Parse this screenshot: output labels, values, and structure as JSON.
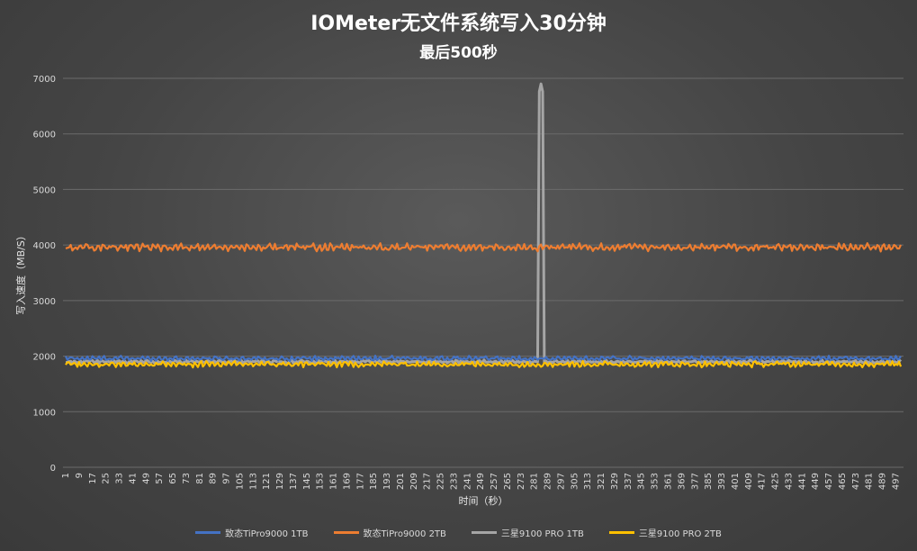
{
  "chart_data": {
    "type": "line",
    "title": "IOMeter无文件系统写入30分钟",
    "subtitle": "最后500秒",
    "xlabel": "时间（秒）",
    "ylabel": "写入速度（MB/S）",
    "ylim": [
      0,
      7000
    ],
    "yticks": [
      0,
      1000,
      2000,
      3000,
      4000,
      5000,
      6000,
      7000
    ],
    "x_start": 1,
    "x_end": 500,
    "x_tick_step": 8,
    "grid": true,
    "legend_position": "bottom",
    "series": [
      {
        "name": "致态TiPro9000 1TB",
        "color": "#4472c4",
        "mean": 1960,
        "amplitude": 45
      },
      {
        "name": "致态TiPro9000 2TB",
        "color": "#ed7d31",
        "mean": 3960,
        "amplitude": 70
      },
      {
        "name": "三星9100 PRO 1TB",
        "color": "#a5a5a5",
        "mean": 1900,
        "amplitude": 30,
        "spike": {
          "x": 285,
          "y": 6900
        }
      },
      {
        "name": "三星9100 PRO 2TB",
        "color": "#ffc000",
        "mean": 1855,
        "amplitude": 55
      }
    ]
  }
}
